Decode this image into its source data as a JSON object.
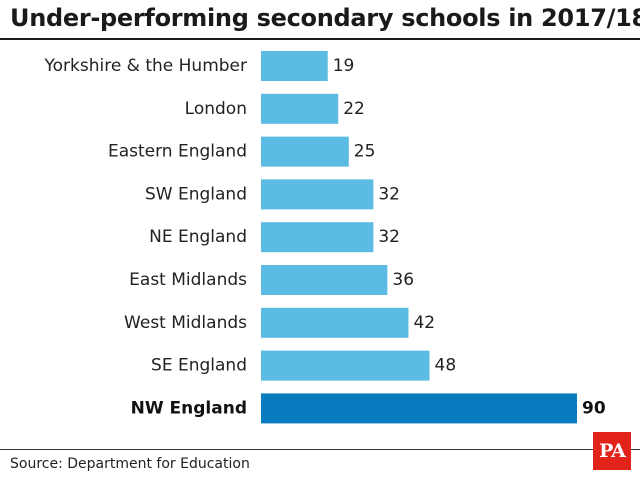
{
  "title": "Under-performing secondary schools in 2017/18",
  "source": "Source: Department for Education",
  "logo_text": "PA",
  "colors": {
    "bar": "#5bbbe2",
    "bar_highlight": "#0a7bbf",
    "logo_bg": "#e2231a"
  },
  "chart_data": {
    "type": "bar",
    "orientation": "horizontal",
    "categories": [
      "Yorkshire & the Humber",
      "London",
      "Eastern England",
      "SW England",
      "NE England",
      "East Midlands",
      "West Midlands",
      "SE England",
      "NW England"
    ],
    "values": [
      19,
      22,
      25,
      32,
      32,
      36,
      42,
      48,
      90
    ],
    "value_labels": [
      "19",
      "22",
      "25",
      "32",
      "32",
      "36",
      "42",
      "48",
      "90"
    ],
    "highlight": "NW England",
    "xlim": [
      0,
      90
    ],
    "grid": false,
    "legend": "none"
  }
}
